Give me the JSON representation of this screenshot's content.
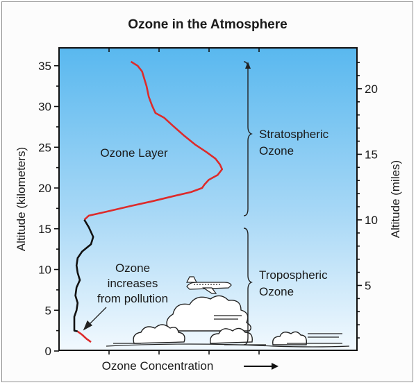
{
  "chart_data": {
    "type": "line",
    "title": "Ozone in the Atmosphere",
    "xlabel": "Ozone Concentration",
    "ylabel": "Altitude (kilometers)",
    "ylabel_right": "Altitude (miles)",
    "ylim": [
      0,
      37
    ],
    "yticks_left": [
      0,
      5,
      10,
      15,
      20,
      25,
      30,
      35
    ],
    "yticks_right": [
      5,
      10,
      15,
      20
    ],
    "x_scale": "relative concentration (no units shown)",
    "grid": false,
    "series": [
      {
        "color": "#dd2b2b",
        "points": [
          [
            28,
            35.5
          ],
          [
            31,
            35.0
          ],
          [
            33,
            34.3
          ],
          [
            34,
            33.4
          ],
          [
            35,
            32.5
          ],
          [
            36,
            31.2
          ],
          [
            37.5,
            30.1
          ],
          [
            39,
            29.2
          ],
          [
            43,
            28.6
          ],
          [
            47,
            27.6
          ],
          [
            52,
            26.4
          ],
          [
            57,
            25.3
          ],
          [
            62,
            24.4
          ],
          [
            66,
            23.6
          ],
          [
            68,
            22.9
          ],
          [
            69,
            22.3
          ],
          [
            67,
            21.6
          ],
          [
            63,
            21.0
          ],
          [
            61,
            20.4
          ],
          [
            60,
            20.0
          ],
          [
            55,
            19.5
          ],
          [
            47,
            19.0
          ],
          [
            38,
            18.4
          ],
          [
            28,
            17.8
          ],
          [
            17,
            17.1
          ],
          [
            9,
            16.6
          ],
          [
            7,
            16.1
          ]
        ]
      },
      {
        "color": "#111111",
        "points": [
          [
            7,
            16.1
          ],
          [
            9,
            15.2
          ],
          [
            11,
            14.0
          ],
          [
            10,
            13.1
          ],
          [
            6,
            12.2
          ],
          [
            4,
            11.4
          ],
          [
            3.5,
            10.5
          ],
          [
            4,
            9.6
          ],
          [
            5,
            8.7
          ],
          [
            3.5,
            7.8
          ],
          [
            3,
            6.8
          ],
          [
            4,
            5.9
          ],
          [
            3.5,
            5.0
          ],
          [
            2.5,
            4.2
          ],
          [
            2.5,
            3.3
          ],
          [
            2.5,
            2.5
          ],
          [
            4,
            2.4
          ]
        ]
      },
      {
        "color": "#dd2b2b",
        "points": [
          [
            4,
            2.4
          ],
          [
            6,
            2.0
          ],
          [
            8,
            1.5
          ],
          [
            10,
            1.1
          ]
        ]
      }
    ],
    "annotations": {
      "ozone_layer": "Ozone Layer",
      "stratospheric": [
        "Stratospheric",
        "Ozone"
      ],
      "tropospheric": [
        "Tropospheric",
        "Ozone"
      ],
      "pollution_note": [
        "Ozone",
        "increases",
        "from pollution"
      ]
    }
  }
}
